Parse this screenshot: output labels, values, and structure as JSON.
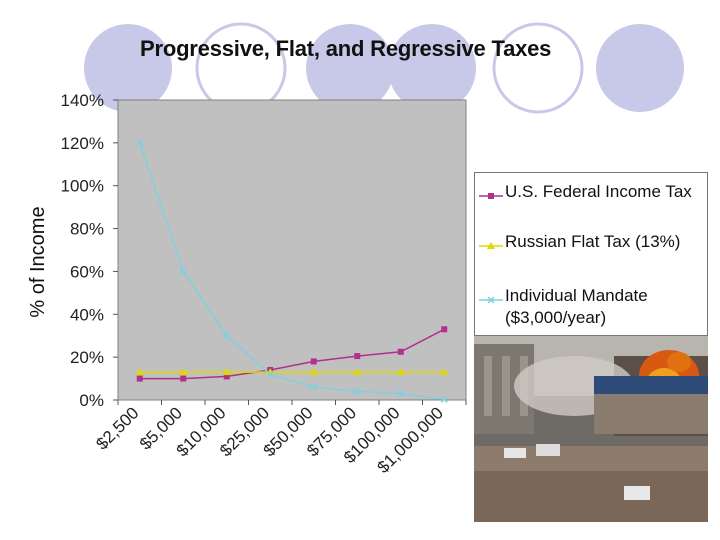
{
  "slide": {
    "title": "Progressive, Flat, and Regressive Taxes",
    "photo_icon": "riot-photo"
  },
  "colors": {
    "plot_bg": "#c0c0c0",
    "us_federal": "#b0308c",
    "russian": "#e0d800",
    "mandate": "#7fd0e0",
    "circle": "#c8c8e8"
  },
  "chart_data": {
    "type": "line",
    "title": "Progressive, Flat, and Regressive Taxes",
    "xlabel": "",
    "ylabel": "% of Income",
    "categories": [
      "$2,500",
      "$5,000",
      "$10,000",
      "$25,000",
      "$50,000",
      "$75,000",
      "$100,000",
      "$1,000,000"
    ],
    "ylim": [
      0,
      140
    ],
    "yticks": [
      "0%",
      "20%",
      "40%",
      "60%",
      "80%",
      "100%",
      "120%",
      "140%"
    ],
    "grid": false,
    "legend_position": "right",
    "series": [
      {
        "name": "U.S. Federal Income Tax",
        "marker": "square",
        "values": [
          10,
          10,
          11,
          14,
          18,
          20.5,
          22.5,
          33
        ]
      },
      {
        "name": "Russian Flat Tax (13%)",
        "marker": "triangle",
        "values": [
          13,
          13,
          13,
          13,
          13,
          13,
          13,
          13
        ]
      },
      {
        "name": "Individual Mandate ($3,000/year)",
        "marker": "x",
        "values": [
          120,
          60,
          30,
          12,
          6,
          4,
          3,
          0.3
        ]
      }
    ]
  }
}
